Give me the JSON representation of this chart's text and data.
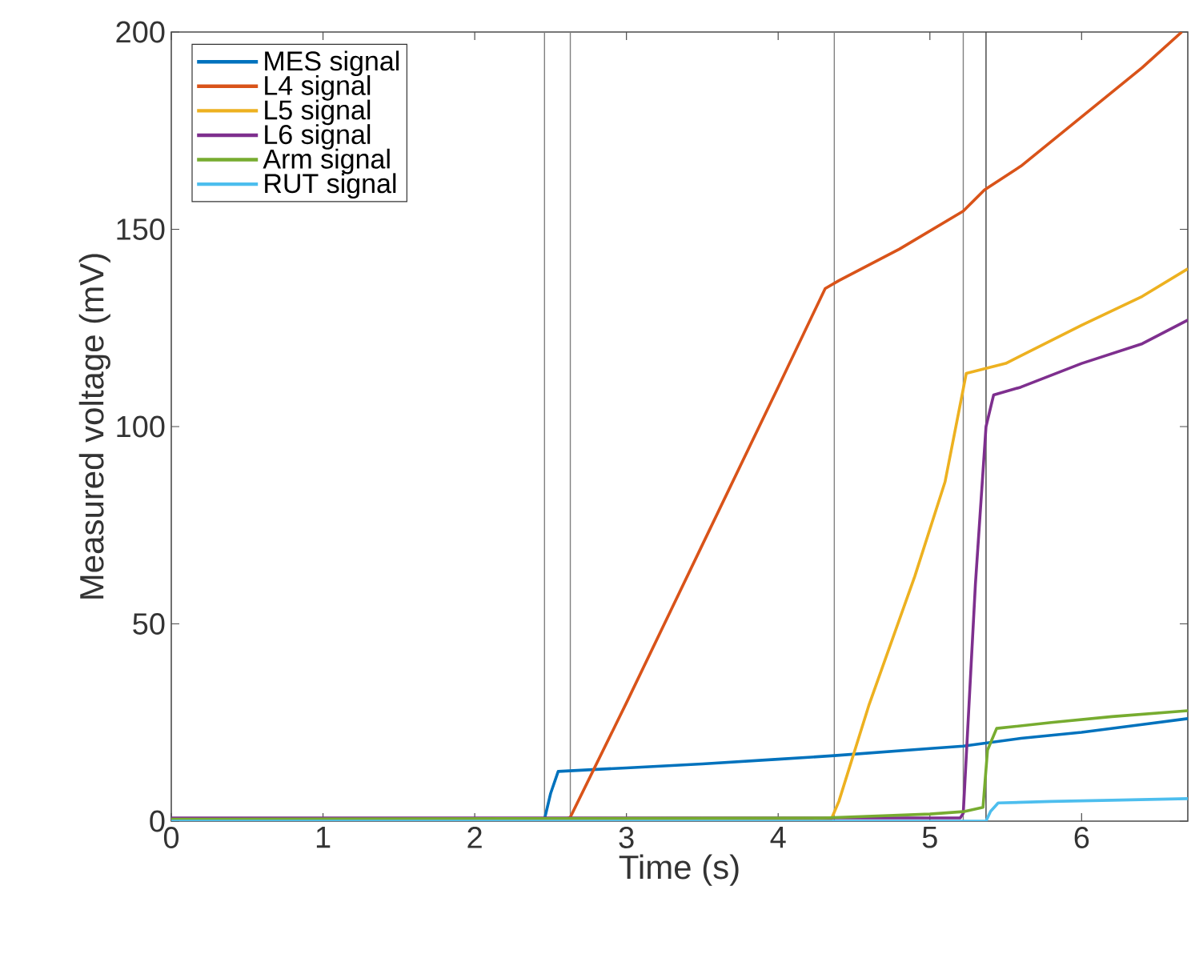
{
  "chart_data": {
    "type": "line",
    "xlabel": "Time (s)",
    "ylabel": "Measured voltage (mV)",
    "xlim": [
      0,
      6.7
    ],
    "ylim": [
      0,
      200
    ],
    "xticks": [
      0,
      1,
      2,
      3,
      4,
      5,
      6
    ],
    "yticks": [
      0,
      50,
      100,
      150,
      200
    ],
    "grid": false,
    "legend": "top left",
    "line_style": "solid",
    "marker": "none",
    "series": [
      {
        "name": "MES signal",
        "color": "#0072bd",
        "x": [
          0,
          2.46,
          2.5,
          2.55,
          3.0,
          3.5,
          4.0,
          4.37,
          5.0,
          5.22,
          5.6,
          6.0,
          6.4,
          6.7
        ],
        "values": [
          0.5,
          0.5,
          7,
          12.6,
          13.5,
          14.5,
          15.7,
          16.6,
          18.4,
          19,
          21,
          22.5,
          24.5,
          26
        ]
      },
      {
        "name": "L4 signal",
        "color": "#d95319",
        "x": [
          0,
          2.6,
          2.63,
          3.0,
          3.5,
          4.0,
          4.31,
          4.4,
          4.8,
          5.22,
          5.36,
          5.6,
          6.0,
          6.4,
          6.66
        ],
        "values": [
          0.5,
          0.5,
          1,
          30,
          70,
          110,
          135,
          137,
          145,
          154.6,
          160,
          166,
          178.5,
          191,
          200
        ]
      },
      {
        "name": "L5 signal",
        "color": "#edb120",
        "x": [
          0,
          4.35,
          4.4,
          4.6,
          4.9,
          5.1,
          5.24,
          5.5,
          6.0,
          6.4,
          6.7
        ],
        "values": [
          0.5,
          0.5,
          5,
          29.6,
          62,
          86,
          113.5,
          116,
          125.7,
          133,
          140
        ]
      },
      {
        "name": "L6 signal",
        "color": "#7e2f8e",
        "x": [
          0,
          5.2,
          5.22,
          5.3,
          5.37,
          5.42,
          5.6,
          6.0,
          6.4,
          6.7
        ],
        "values": [
          0.8,
          0.8,
          2,
          60,
          100,
          108,
          110,
          116,
          121,
          127
        ]
      },
      {
        "name": "Arm signal",
        "color": "#77ac30",
        "x": [
          0,
          4.3,
          5.0,
          5.22,
          5.35,
          5.38,
          5.44,
          5.8,
          6.2,
          6.7
        ],
        "values": [
          0.5,
          0.8,
          1.8,
          2.4,
          3.5,
          18,
          23.5,
          25,
          26.5,
          28
        ]
      },
      {
        "name": "RUT signal",
        "color": "#4dbeee",
        "x": [
          0,
          5.37,
          5.4,
          5.45,
          5.8,
          6.2,
          6.7
        ],
        "values": [
          0,
          0,
          2.5,
          4.6,
          5,
          5.3,
          5.7
        ]
      }
    ],
    "ref_lines": [
      {
        "axis": "x",
        "value": 2.46,
        "color": "#808080"
      },
      {
        "axis": "x",
        "value": 2.63,
        "color": "#808080"
      },
      {
        "axis": "x",
        "value": 4.37,
        "color": "#808080"
      },
      {
        "axis": "x",
        "value": 5.22,
        "color": "#808080"
      },
      {
        "axis": "x",
        "value": 5.37,
        "color": "#404040"
      }
    ]
  }
}
